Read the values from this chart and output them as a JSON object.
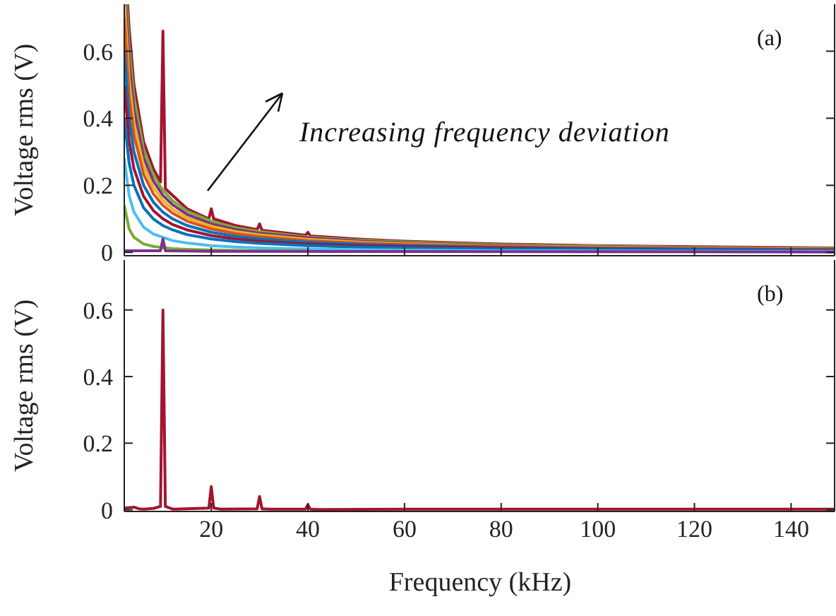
{
  "chart_data": [
    {
      "type": "line",
      "ylabel": "Voltage rms (V)",
      "xlim": [
        2,
        149
      ],
      "xticks": [
        20,
        40,
        60,
        80,
        100,
        120,
        140
      ],
      "ylim": [
        -0.01,
        0.74
      ],
      "yticks": [
        0,
        0.2,
        0.4,
        0.6
      ],
      "tick_labels": "y",
      "annotations": [
        "(a)",
        "Increasing frequency deviation"
      ],
      "series": [
        {
          "color": "#a2142f",
          "x": [
            2.7,
            3,
            4,
            6,
            8,
            9.5,
            10,
            10.5,
            12,
            15,
            19.5,
            20,
            20.5,
            25,
            29.5,
            30,
            30.5,
            39.5,
            40,
            40.5,
            50,
            60,
            80,
            100,
            120,
            149
          ],
          "values": [
            0.74,
            0.67,
            0.5,
            0.33,
            0.25,
            0.21,
            0.66,
            0.19,
            0.17,
            0.13,
            0.1,
            0.13,
            0.1,
            0.08,
            0.068,
            0.085,
            0.066,
            0.051,
            0.06,
            0.049,
            0.04,
            0.033,
            0.025,
            0.02,
            0.017,
            0.013
          ]
        },
        {
          "color": "#77ac30",
          "x": [
            2.5,
            3,
            4,
            6,
            8,
            10,
            12,
            15,
            20,
            25,
            30,
            40,
            50,
            60,
            80,
            100,
            120,
            149
          ],
          "values": [
            0.74,
            0.617,
            0.463,
            0.308,
            0.231,
            0.185,
            0.154,
            0.123,
            0.093,
            0.074,
            0.062,
            0.046,
            0.037,
            0.031,
            0.023,
            0.019,
            0.015,
            0.012
          ]
        },
        {
          "color": "#7e2f8e",
          "x": [
            2.3,
            3,
            4,
            6,
            8,
            10,
            12,
            15,
            20,
            25,
            30,
            40,
            50,
            60,
            80,
            100,
            120,
            149
          ],
          "values": [
            0.739,
            0.567,
            0.425,
            0.283,
            0.213,
            0.17,
            0.142,
            0.113,
            0.085,
            0.068,
            0.057,
            0.043,
            0.034,
            0.028,
            0.021,
            0.017,
            0.014,
            0.011
          ]
        },
        {
          "color": "#edb120",
          "x": [
            2.1,
            3,
            4,
            6,
            8,
            10,
            12,
            15,
            20,
            25,
            30,
            40,
            50,
            60,
            80,
            100,
            120,
            149
          ],
          "values": [
            0.738,
            0.517,
            0.388,
            0.258,
            0.194,
            0.155,
            0.129,
            0.103,
            0.078,
            0.062,
            0.052,
            0.039,
            0.031,
            0.026,
            0.019,
            0.016,
            0.013,
            0.01
          ]
        },
        {
          "color": "#d95319",
          "x": [
            2,
            3,
            4,
            6,
            8,
            10,
            12,
            15,
            20,
            25,
            30,
            40,
            50,
            60,
            80,
            100,
            120,
            149
          ],
          "values": [
            0.7,
            0.467,
            0.35,
            0.233,
            0.175,
            0.14,
            0.117,
            0.093,
            0.07,
            0.056,
            0.047,
            0.035,
            0.028,
            0.023,
            0.018,
            0.014,
            0.012,
            0.009
          ]
        },
        {
          "color": "#0072bd",
          "x": [
            2,
            3,
            4,
            6,
            8,
            10,
            12,
            15,
            20,
            25,
            30,
            40,
            50,
            60,
            80,
            100,
            120,
            149
          ],
          "values": [
            0.6,
            0.4,
            0.3,
            0.2,
            0.15,
            0.12,
            0.1,
            0.08,
            0.06,
            0.048,
            0.04,
            0.03,
            0.024,
            0.02,
            0.015,
            0.012,
            0.01,
            0.008
          ]
        },
        {
          "color": "#a2142f",
          "x": [
            2,
            3,
            4,
            6,
            8,
            10,
            12,
            15,
            20,
            25,
            30,
            40,
            50,
            60,
            80,
            100,
            120,
            149
          ],
          "values": [
            0.5,
            0.333,
            0.25,
            0.167,
            0.125,
            0.1,
            0.083,
            0.067,
            0.05,
            0.04,
            0.033,
            0.025,
            0.02,
            0.017,
            0.013,
            0.01,
            0.008,
            0.007
          ]
        },
        {
          "color": "#0072bd",
          "x": [
            2,
            3,
            4,
            6,
            8,
            10,
            12,
            15,
            20,
            25,
            30,
            40,
            50,
            60,
            80,
            100,
            120,
            149
          ],
          "values": [
            0.4,
            0.267,
            0.2,
            0.133,
            0.1,
            0.08,
            0.067,
            0.053,
            0.04,
            0.032,
            0.027,
            0.02,
            0.016,
            0.013,
            0.01,
            0.008,
            0.007,
            0.005
          ]
        },
        {
          "color": "#4dbeee",
          "x": [
            2,
            3,
            4,
            6,
            8,
            10,
            12,
            15,
            20,
            25,
            30,
            40,
            50,
            60,
            80,
            100,
            120,
            149
          ],
          "values": [
            0.28,
            0.17,
            0.12,
            0.075,
            0.055,
            0.045,
            0.035,
            0.028,
            0.02,
            0.016,
            0.013,
            0.01,
            0.008,
            0.007,
            0.005,
            0.004,
            0.003,
            0.003
          ]
        },
        {
          "color": "#77ac30",
          "x": [
            2,
            3,
            4,
            6,
            8,
            10,
            12,
            15,
            20,
            25,
            30,
            40
          ],
          "values": [
            0.14,
            0.07,
            0.045,
            0.025,
            0.018,
            0.014,
            0.011,
            0.009,
            0.007,
            0.006,
            0.005,
            0.004
          ]
        },
        {
          "color": "#7e2f8e",
          "x": [
            2,
            9.5,
            10,
            10.5,
            20,
            149
          ],
          "values": [
            0.005,
            0.005,
            0.04,
            0.005,
            0.003,
            0.001
          ]
        }
      ]
    },
    {
      "type": "line",
      "ylabel": "Voltage rms (V)",
      "xlabel": "Frequency (kHz)",
      "xlim": [
        2,
        149
      ],
      "xticks": [
        20,
        40,
        60,
        80,
        100,
        120,
        140
      ],
      "ylim": [
        -0.005,
        0.75
      ],
      "yticks": [
        0,
        0.2,
        0.4,
        0.6
      ],
      "annotations": [
        "(b)"
      ],
      "series": [
        {
          "color": "#a2142f",
          "x": [
            2,
            4,
            5,
            6,
            8,
            9.5,
            10,
            10.5,
            12,
            19.5,
            20,
            20.5,
            22,
            29.5,
            30,
            30.5,
            32,
            39.5,
            40,
            40.5,
            42,
            60,
            100,
            149
          ],
          "values": [
            0.005,
            0.008,
            0.003,
            0.002,
            0.004,
            0.01,
            0.6,
            0.01,
            0.002,
            0.005,
            0.07,
            0.005,
            0.002,
            0.003,
            0.04,
            0.003,
            0.002,
            0.002,
            0.015,
            0.002,
            0.001,
            0.002,
            0.002,
            0.002
          ]
        }
      ]
    }
  ]
}
